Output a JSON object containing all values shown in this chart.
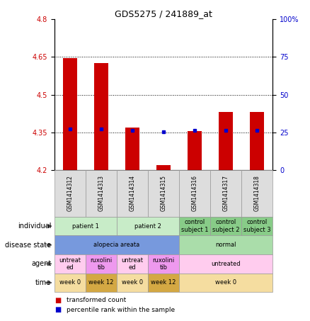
{
  "title": "GDS5275 / 241889_at",
  "samples": [
    "GSM1414312",
    "GSM1414313",
    "GSM1414314",
    "GSM1414315",
    "GSM1414316",
    "GSM1414317",
    "GSM1414318"
  ],
  "bar_values": [
    4.645,
    4.625,
    4.37,
    4.22,
    4.355,
    4.43,
    4.43
  ],
  "bar_base": 4.2,
  "percentile_values": [
    4.365,
    4.363,
    4.358,
    4.352,
    4.357,
    4.358,
    4.357
  ],
  "ylim": [
    4.2,
    4.8
  ],
  "yticks_left": [
    4.2,
    4.35,
    4.5,
    4.65,
    4.8
  ],
  "yticks_right": [
    0,
    25,
    50,
    75,
    100
  ],
  "yticks_right_labels": [
    "0",
    "25",
    "50",
    "75",
    "100%"
  ],
  "hlines": [
    4.35,
    4.5,
    4.65
  ],
  "bar_color": "#cc0000",
  "percentile_color": "#0000cc",
  "row_labels": [
    "individual",
    "disease state",
    "agent",
    "time"
  ],
  "individual_data": {
    "groups": [
      {
        "label": "patient 1",
        "start": 0,
        "end": 2,
        "color": "#c8ecc8"
      },
      {
        "label": "patient 2",
        "start": 2,
        "end": 4,
        "color": "#c8ecc8"
      },
      {
        "label": "control\nsubject 1",
        "start": 4,
        "end": 5,
        "color": "#88cc88"
      },
      {
        "label": "control\nsubject 2",
        "start": 5,
        "end": 6,
        "color": "#88cc88"
      },
      {
        "label": "control\nsubject 3",
        "start": 6,
        "end": 7,
        "color": "#88cc88"
      }
    ]
  },
  "disease_data": {
    "groups": [
      {
        "label": "alopecia areata",
        "start": 0,
        "end": 4,
        "color": "#7799dd"
      },
      {
        "label": "normal",
        "start": 4,
        "end": 7,
        "color": "#aaddaa"
      }
    ]
  },
  "agent_data": {
    "groups": [
      {
        "label": "untreat\ned",
        "start": 0,
        "end": 1,
        "color": "#ffccee"
      },
      {
        "label": "ruxolini\ntib",
        "start": 1,
        "end": 2,
        "color": "#ee99ee"
      },
      {
        "label": "untreat\ned",
        "start": 2,
        "end": 3,
        "color": "#ffccee"
      },
      {
        "label": "ruxolini\ntib",
        "start": 3,
        "end": 4,
        "color": "#ee99ee"
      },
      {
        "label": "untreated",
        "start": 4,
        "end": 7,
        "color": "#ffccee"
      }
    ]
  },
  "time_data": {
    "groups": [
      {
        "label": "week 0",
        "start": 0,
        "end": 1,
        "color": "#f5dda0"
      },
      {
        "label": "week 12",
        "start": 1,
        "end": 2,
        "color": "#d4a843"
      },
      {
        "label": "week 0",
        "start": 2,
        "end": 3,
        "color": "#f5dda0"
      },
      {
        "label": "week 12",
        "start": 3,
        "end": 4,
        "color": "#d4a843"
      },
      {
        "label": "week 0",
        "start": 4,
        "end": 7,
        "color": "#f5dda0"
      }
    ]
  }
}
